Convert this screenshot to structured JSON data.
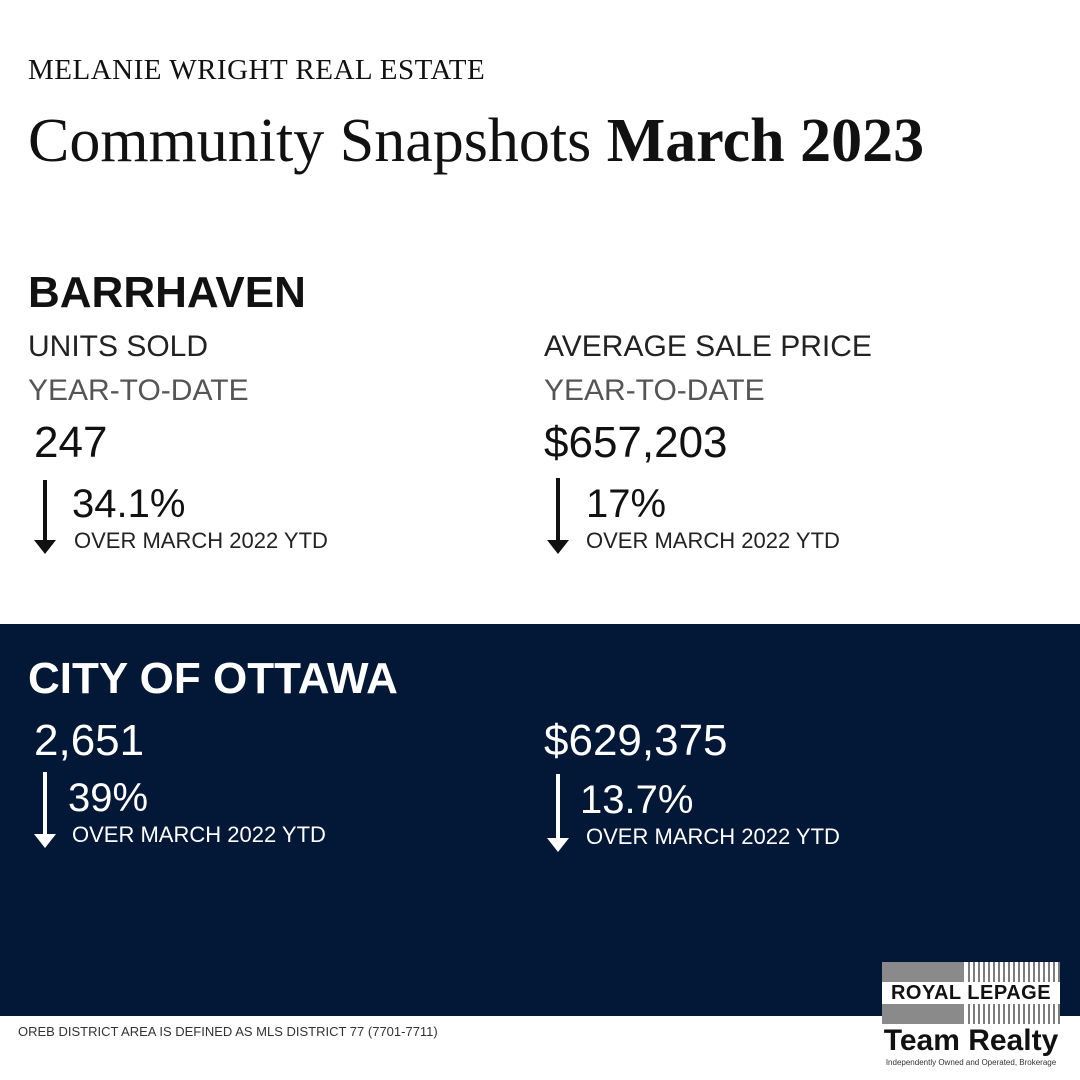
{
  "brand": "MELANIE WRIGHT REAL ESTATE",
  "title": {
    "prefix": "Community Snapshots ",
    "highlight": "March 2023"
  },
  "barrhaven": {
    "heading": "BARRHAVEN",
    "units": {
      "label": "UNITS SOLD",
      "period": "YEAR-TO-DATE",
      "value": "247",
      "change": "34.1%",
      "change_direction": "down",
      "comparison": "OVER MARCH 2022 YTD"
    },
    "price": {
      "label": "AVERAGE SALE PRICE",
      "period": "YEAR-TO-DATE",
      "value": "$657,203",
      "change": "17%",
      "change_direction": "down",
      "comparison": "OVER MARCH 2022 YTD"
    }
  },
  "ottawa": {
    "heading": "CITY OF OTTAWA",
    "units": {
      "value": "2,651",
      "change": "39%",
      "change_direction": "down",
      "comparison": "OVER MARCH 2022 YTD"
    },
    "price": {
      "value": "$629,375",
      "change": "13.7%",
      "change_direction": "down",
      "comparison": "OVER MARCH 2022 YTD"
    }
  },
  "footnote": "OREB DISTRICT AREA IS DEFINED AS MLS DISTRICT 77 (7701-7711)",
  "logo": {
    "name": "ROYAL LEPAGE",
    "team": "Team Realty",
    "tagline": "Independently Owned and Operated, Brokerage"
  },
  "colors": {
    "navy_panel": "#031736",
    "text": "#111111",
    "logo_gray": "#8a8a8a"
  },
  "icons": {
    "change_arrow": "arrow-down-icon"
  }
}
